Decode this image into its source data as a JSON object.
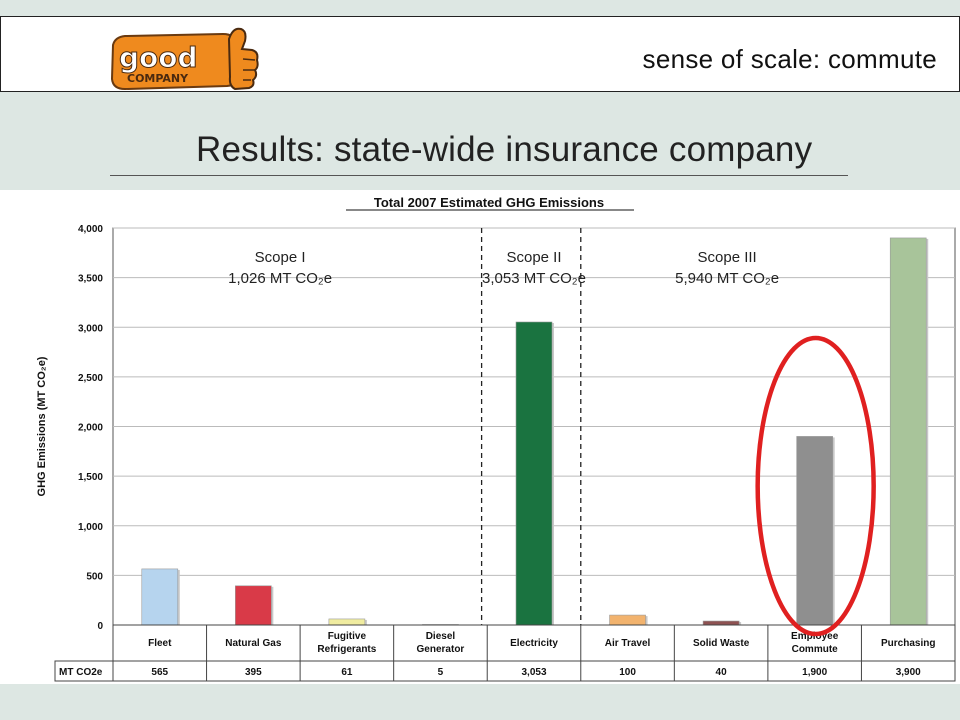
{
  "header": {
    "logo_text_top": "good",
    "logo_text_bottom": "COMPANY",
    "section_title": "sense of scale:  commute"
  },
  "slide_title": "Results:  state-wide insurance company",
  "chart_data": {
    "type": "bar",
    "title": "Total 2007 Estimated GHG Emissions",
    "ylabel": "GHG Emissions (MT CO₂e)",
    "ylim": [
      0,
      4000
    ],
    "yticks": [
      "0",
      "500",
      "1,000",
      "1,500",
      "2,000",
      "2,500",
      "3,000",
      "3,500",
      "4,000"
    ],
    "ytick_values": [
      0,
      500,
      1000,
      1500,
      2000,
      2500,
      3000,
      3500,
      4000
    ],
    "grid": true,
    "categories": [
      [
        "Fleet"
      ],
      [
        "Natural Gas"
      ],
      [
        "Fugitive",
        "Refrigerants"
      ],
      [
        "Diesel",
        "Generator"
      ],
      [
        "Electricity"
      ],
      [
        "Air Travel"
      ],
      [
        "Solid Waste"
      ],
      [
        "Employee",
        "Commute"
      ],
      [
        "Purchasing"
      ]
    ],
    "values": [
      565,
      395,
      61,
      5,
      3053,
      100,
      40,
      1900,
      3900
    ],
    "colors": [
      "#b6d4ee",
      "#d93a48",
      "#f0eca0",
      "#f0eca0",
      "#1a7340",
      "#f2b36e",
      "#8e5252",
      "#8f8f8f",
      "#a8c49a"
    ],
    "table_row_label": "MT CO2e",
    "table_values": [
      "565",
      "395",
      "61",
      "5",
      "3,053",
      "100",
      "40",
      "1,900",
      "3,900"
    ],
    "scopes": [
      {
        "name": "Scope I",
        "total": "1,026 MT CO₂e"
      },
      {
        "name": "Scope II",
        "total": "3,053 MT CO₂e"
      },
      {
        "name": "Scope III",
        "total": "5,940 MT CO₂e"
      }
    ],
    "highlight_category": "Employee Commute",
    "highlight_color": "#e02020"
  }
}
